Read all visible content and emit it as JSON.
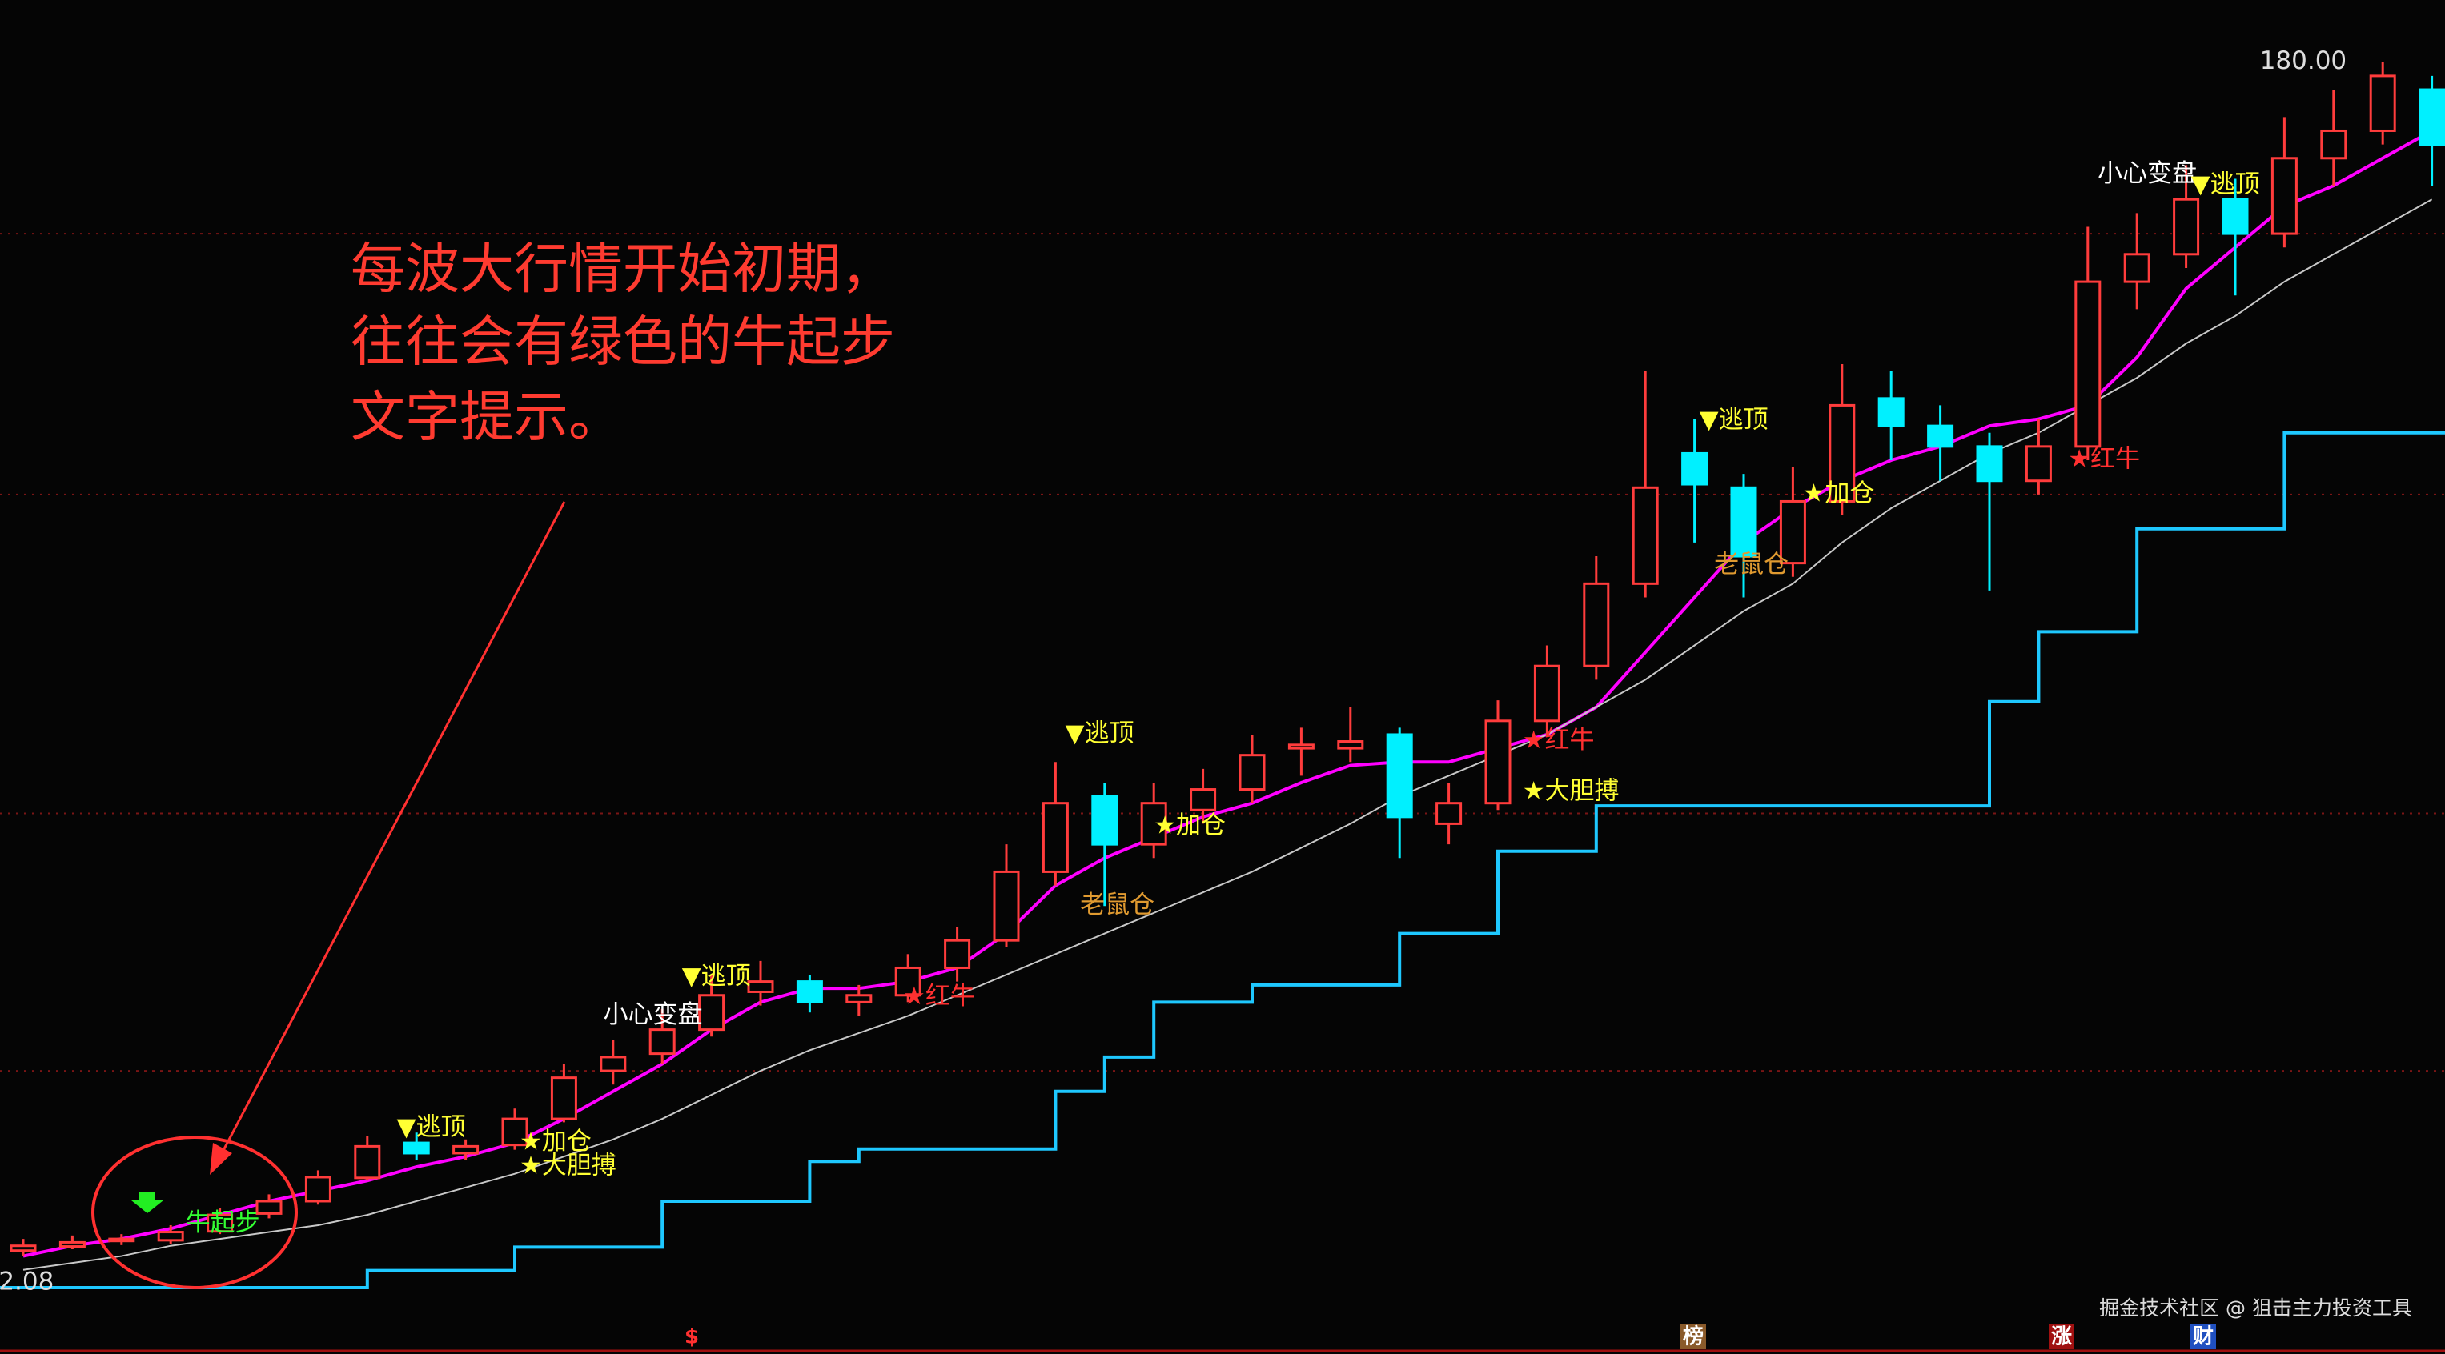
{
  "chart_data": {
    "type": "candlestick",
    "ylim": [
      0,
      190
    ],
    "gridlines": [
      155,
      117,
      70.5,
      33
    ],
    "open": [
      6.8,
      7.4,
      8.2,
      8.3,
      9.6,
      12.2,
      14.0,
      17.4,
      22.5,
      21.0,
      22.2,
      26.0,
      33.0,
      35.5,
      39.0,
      44.5,
      46.0,
      43.0,
      44.0,
      48.0,
      52.0,
      62.0,
      73.0,
      66.0,
      71.0,
      74.0,
      80.0,
      80.0,
      82.0,
      69.0,
      72.0,
      84.0,
      92.0,
      104.0,
      123.0,
      118.0,
      107.0,
      116.0,
      131.0,
      127.0,
      124.0,
      119.0,
      124.0,
      148.0,
      152.0,
      160.0,
      155.0,
      166.0,
      170.0,
      176.0
    ],
    "high": [
      8.5,
      9.0,
      9.2,
      10.5,
      13.0,
      15.0,
      18.5,
      23.5,
      24.0,
      23.0,
      27.5,
      34.0,
      37.5,
      42.0,
      47.0,
      49.0,
      47.0,
      45.5,
      50.0,
      54.0,
      66.0,
      78.0,
      75.0,
      75.0,
      77.0,
      82.0,
      83.0,
      86.0,
      83.0,
      75.0,
      87.0,
      95.0,
      108.0,
      135.0,
      128.0,
      120.0,
      121.0,
      136.0,
      135.0,
      130.0,
      126.0,
      128.0,
      156.0,
      158.0,
      165.0,
      163.0,
      172.0,
      176.0,
      180.0,
      178.0
    ],
    "low": [
      6.0,
      7.0,
      7.6,
      7.8,
      9.2,
      11.5,
      13.5,
      17.0,
      20.0,
      20.0,
      21.5,
      25.5,
      31.0,
      34.0,
      38.0,
      42.5,
      41.5,
      41.0,
      43.0,
      46.0,
      51.0,
      60.0,
      57.0,
      64.0,
      69.0,
      72.0,
      76.0,
      78.0,
      64.0,
      66.0,
      71.0,
      82.0,
      90.0,
      102.0,
      110.0,
      102.0,
      105.0,
      114.0,
      122.0,
      119.0,
      103.0,
      117.0,
      122.0,
      144.0,
      150.0,
      146.0,
      153.0,
      162.0,
      168.0,
      162.0
    ],
    "close": [
      7.5,
      8.0,
      8.5,
      9.5,
      12.0,
      14.0,
      17.5,
      22.0,
      21.0,
      22.0,
      26.0,
      32.0,
      35.0,
      39.0,
      44.0,
      46.0,
      43.0,
      44.0,
      48.0,
      52.0,
      62.0,
      72.0,
      66.0,
      72.0,
      74.0,
      79.0,
      80.5,
      81.0,
      70.0,
      72.0,
      84.0,
      92.0,
      104.0,
      118.0,
      118.5,
      108.0,
      116.0,
      130.0,
      127.0,
      124.0,
      119.0,
      124.0,
      148.0,
      152.0,
      160.0,
      155.0,
      166.0,
      170.0,
      178.0,
      168.0
    ],
    "up_color": "#ff3c3c",
    "down_color": "#00f0ff",
    "lines": [
      {
        "color": "#ff00ff",
        "values": [
          6,
          7.5,
          8.5,
          10,
          12,
          14,
          15.5,
          17,
          19,
          20.5,
          22.5,
          26,
          30,
          34,
          39,
          43,
          45,
          45,
          46,
          48,
          53,
          60,
          64,
          67,
          70,
          72,
          75,
          77.5,
          78,
          78,
          80,
          82,
          86,
          94,
          102,
          110,
          115,
          119,
          122,
          124,
          127,
          128,
          130,
          137,
          147,
          153,
          159,
          162,
          166,
          170
        ]
      },
      {
        "color": "#c8c8c8",
        "values": [
          4,
          5,
          6,
          7.5,
          8.5,
          9.5,
          10.5,
          12,
          14,
          16,
          18,
          20.5,
          23,
          26,
          29.5,
          33,
          36,
          38.5,
          41,
          44,
          47,
          50,
          53,
          56,
          59,
          62,
          65.5,
          69,
          73,
          76,
          79,
          82,
          86,
          90,
          95,
          100,
          104,
          110,
          115,
          119,
          123,
          126,
          130,
          134,
          139,
          143,
          148,
          152,
          156,
          160
        ]
      }
    ],
    "step_line": {
      "color": "#1ec8ff",
      "values": [
        1.4,
        1.4,
        1.4,
        1.4,
        1.4,
        1.4,
        1.4,
        3.9,
        3.9,
        3.9,
        7.3,
        7.3,
        7.3,
        14,
        14,
        14,
        19.8,
        21.6,
        21.6,
        21.6,
        21.6,
        30,
        35,
        43,
        43,
        45.5,
        45.5,
        45.5,
        53,
        53,
        65,
        65,
        71.6,
        71.6,
        71.6,
        71.6,
        71.6,
        71.6,
        71.6,
        71.6,
        86.8,
        97,
        97,
        112,
        112,
        112,
        126,
        126,
        126,
        126
      ]
    },
    "annotations": [
      {
        "text": "牛起步",
        "x": 3.3,
        "y": 10.7,
        "color": "#33ff33"
      },
      {
        "text": "▼逃顶",
        "x": 7.6,
        "y": 24.6,
        "color": "#ffff33"
      },
      {
        "text": "★加仓",
        "x": 10.1,
        "y": 22.5,
        "color": "#ffff33"
      },
      {
        "text": "★大胆搏",
        "x": 10.1,
        "y": 19,
        "color": "#ffff33"
      },
      {
        "text": "小心变盘",
        "x": 11.8,
        "y": 41,
        "color": "#ffffff"
      },
      {
        "text": "▼逃顶",
        "x": 13.4,
        "y": 46.6,
        "color": "#ffff33"
      },
      {
        "text": "★红牛",
        "x": 17.9,
        "y": 43.7,
        "color": "#ff3030"
      },
      {
        "text": "▼逃顶",
        "x": 21.2,
        "y": 82,
        "color": "#ffff33"
      },
      {
        "text": "★加仓",
        "x": 23,
        "y": 68.6,
        "color": "#ffff33"
      },
      {
        "text": "老鼠仓",
        "x": 21.5,
        "y": 57,
        "color": "#e09a30"
      },
      {
        "text": "★红牛",
        "x": 30.5,
        "y": 81,
        "color": "#ff3030"
      },
      {
        "text": "★大胆搏",
        "x": 30.5,
        "y": 73.6,
        "color": "#ffff33"
      },
      {
        "text": "▼逃顶",
        "x": 34.1,
        "y": 127.7,
        "color": "#ffff33"
      },
      {
        "text": "★加仓",
        "x": 36.2,
        "y": 117,
        "color": "#ffff33"
      },
      {
        "text": "老鼠仓",
        "x": 34.4,
        "y": 106.6,
        "color": "#e09a30"
      },
      {
        "text": "★红牛",
        "x": 41.6,
        "y": 122,
        "color": "#ff3030"
      },
      {
        "text": "小心变盘",
        "x": 42.2,
        "y": 163.6,
        "color": "#ffffff"
      },
      {
        "text": "▼逃顶",
        "x": 44.1,
        "y": 162,
        "color": "#ffff33"
      },
      {
        "text": "180.00",
        "x": 45.5,
        "y": 180,
        "color": "#dddddd"
      },
      {
        "text": "2.08",
        "x": -0.5,
        "y": 2.08,
        "color": "#dddddd"
      }
    ],
    "callout": [
      "每波大行情开始初期，",
      "往往会有绿色的牛起步",
      "文字提示。"
    ],
    "watermark": "掘金技术社区 @ 狙击主力投资工具",
    "markers": [
      "$",
      "榜",
      "涨",
      "财"
    ]
  }
}
